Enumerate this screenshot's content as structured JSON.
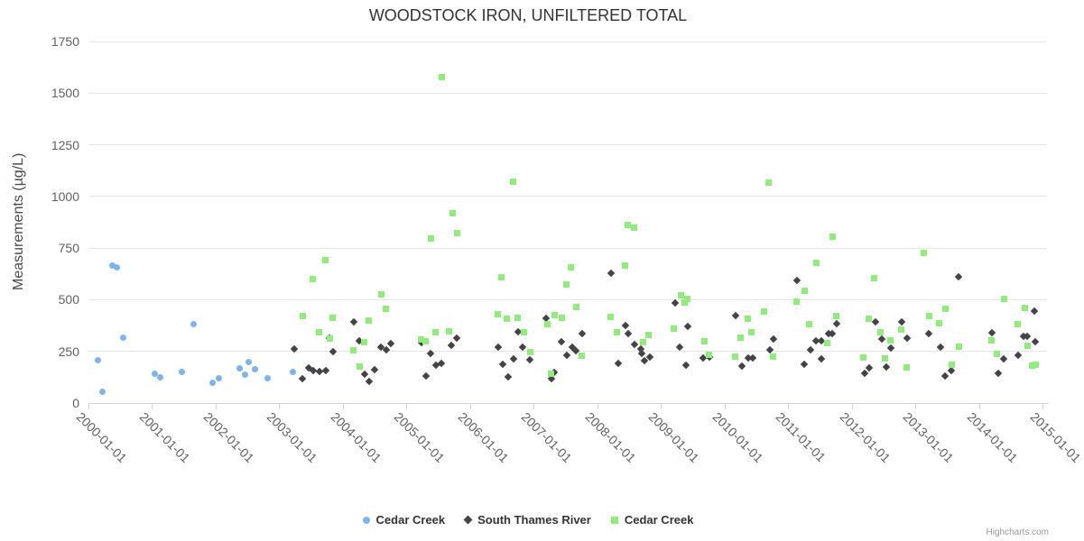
{
  "credits": {
    "label": "Highcharts.com"
  },
  "chart_data": {
    "type": "scatter",
    "title": "WOODSTOCK IRON, UNFILTERED TOTAL",
    "xlabel": "",
    "ylabel": "Measurements (µg/L)",
    "ylim": [
      0,
      1750
    ],
    "yticks": [
      0,
      250,
      500,
      750,
      1000,
      1250,
      1500,
      1750
    ],
    "xlim_years": [
      2000,
      2015
    ],
    "xticks": [
      "2000-01-01",
      "2001-01-01",
      "2002-01-01",
      "2003-01-01",
      "2004-01-01",
      "2005-01-01",
      "2006-01-01",
      "2007-01-01",
      "2008-01-01",
      "2009-01-01",
      "2010-01-01",
      "2011-01-01",
      "2012-01-01",
      "2013-01-01",
      "2014-01-01",
      "2015-01-01"
    ],
    "grid": true,
    "legend_position": "bottom-center",
    "series": [
      {
        "name": "Cedar Creek",
        "marker": "circle",
        "color": "#7cb5ec",
        "points": [
          [
            2000.15,
            207
          ],
          [
            2000.22,
            55
          ],
          [
            2000.37,
            665
          ],
          [
            2000.45,
            655
          ],
          [
            2000.55,
            315
          ],
          [
            2001.05,
            140
          ],
          [
            2001.13,
            125
          ],
          [
            2001.47,
            150
          ],
          [
            2001.65,
            380
          ],
          [
            2001.95,
            100
          ],
          [
            2002.05,
            118
          ],
          [
            2002.37,
            167
          ],
          [
            2002.46,
            137
          ],
          [
            2002.52,
            198
          ],
          [
            2002.62,
            162
          ],
          [
            2002.81,
            119
          ],
          [
            2003.22,
            150
          ]
        ]
      },
      {
        "name": "South Thames River",
        "marker": "diamond",
        "color": "#434348",
        "points": [
          [
            2003.23,
            261
          ],
          [
            2003.37,
            118
          ],
          [
            2003.46,
            172
          ],
          [
            2003.54,
            156
          ],
          [
            2003.64,
            153
          ],
          [
            2003.73,
            156
          ],
          [
            2003.79,
            315
          ],
          [
            2003.84,
            249
          ],
          [
            2004.17,
            394
          ],
          [
            2004.26,
            303
          ],
          [
            2004.34,
            141
          ],
          [
            2004.42,
            105
          ],
          [
            2004.5,
            161
          ],
          [
            2004.6,
            271
          ],
          [
            2004.68,
            259
          ],
          [
            2004.75,
            286
          ],
          [
            2005.23,
            294
          ],
          [
            2005.31,
            131
          ],
          [
            2005.38,
            239
          ],
          [
            2005.46,
            185
          ],
          [
            2005.55,
            194
          ],
          [
            2005.71,
            280
          ],
          [
            2005.79,
            314
          ],
          [
            2006.44,
            271
          ],
          [
            2006.51,
            189
          ],
          [
            2006.6,
            128
          ],
          [
            2006.68,
            213
          ],
          [
            2006.75,
            343
          ],
          [
            2006.82,
            271
          ],
          [
            2006.94,
            210
          ],
          [
            2007.2,
            411
          ],
          [
            2007.28,
            117
          ],
          [
            2007.32,
            150
          ],
          [
            2007.44,
            298
          ],
          [
            2007.52,
            230
          ],
          [
            2007.6,
            271
          ],
          [
            2007.67,
            254
          ],
          [
            2007.76,
            336
          ],
          [
            2008.22,
            629
          ],
          [
            2008.33,
            194
          ],
          [
            2008.45,
            376
          ],
          [
            2008.49,
            334
          ],
          [
            2008.59,
            283
          ],
          [
            2008.68,
            264
          ],
          [
            2008.7,
            239
          ],
          [
            2008.74,
            204
          ],
          [
            2008.82,
            224
          ],
          [
            2009.22,
            483
          ],
          [
            2009.3,
            271
          ],
          [
            2009.39,
            185
          ],
          [
            2009.42,
            373
          ],
          [
            2009.67,
            217
          ],
          [
            2009.76,
            224
          ],
          [
            2010.17,
            424
          ],
          [
            2010.27,
            179
          ],
          [
            2010.38,
            220
          ],
          [
            2010.44,
            217
          ],
          [
            2010.71,
            259
          ],
          [
            2010.77,
            308
          ],
          [
            2011.14,
            595
          ],
          [
            2011.26,
            189
          ],
          [
            2011.35,
            257
          ],
          [
            2011.44,
            303
          ],
          [
            2011.52,
            303
          ],
          [
            2011.53,
            213
          ],
          [
            2011.63,
            337
          ],
          [
            2011.7,
            337
          ],
          [
            2011.76,
            385
          ],
          [
            2012.2,
            144
          ],
          [
            2012.28,
            169
          ],
          [
            2012.38,
            391
          ],
          [
            2012.48,
            308
          ],
          [
            2012.54,
            176
          ],
          [
            2012.62,
            268
          ],
          [
            2012.79,
            394
          ],
          [
            2012.87,
            315
          ],
          [
            2013.21,
            334
          ],
          [
            2013.4,
            271
          ],
          [
            2013.47,
            131
          ],
          [
            2013.57,
            158
          ],
          [
            2013.68,
            613
          ],
          [
            2014.21,
            341
          ],
          [
            2014.31,
            146
          ],
          [
            2014.39,
            213
          ],
          [
            2014.62,
            230
          ],
          [
            2014.7,
            325
          ],
          [
            2014.76,
            325
          ],
          [
            2014.87,
            445
          ],
          [
            2014.89,
            296
          ]
        ]
      },
      {
        "name": "Cedar Creek",
        "marker": "square",
        "color": "#90ed7d",
        "points": [
          [
            2003.37,
            421
          ],
          [
            2003.53,
            599
          ],
          [
            2003.63,
            344
          ],
          [
            2003.72,
            690
          ],
          [
            2003.8,
            311
          ],
          [
            2003.84,
            414
          ],
          [
            2004.17,
            254
          ],
          [
            2004.26,
            176
          ],
          [
            2004.34,
            296
          ],
          [
            2004.41,
            400
          ],
          [
            2004.61,
            526
          ],
          [
            2004.67,
            454
          ],
          [
            2005.23,
            306
          ],
          [
            2005.3,
            297
          ],
          [
            2005.39,
            798
          ],
          [
            2005.46,
            344
          ],
          [
            2005.56,
            1578
          ],
          [
            2005.67,
            349
          ],
          [
            2005.73,
            920
          ],
          [
            2005.8,
            822
          ],
          [
            2006.43,
            432
          ],
          [
            2006.49,
            607
          ],
          [
            2006.58,
            407
          ],
          [
            2006.67,
            1070
          ],
          [
            2006.75,
            413
          ],
          [
            2006.85,
            344
          ],
          [
            2006.94,
            245
          ],
          [
            2007.21,
            384
          ],
          [
            2007.27,
            141
          ],
          [
            2007.33,
            426
          ],
          [
            2007.44,
            413
          ],
          [
            2007.51,
            574
          ],
          [
            2007.59,
            655
          ],
          [
            2007.67,
            465
          ],
          [
            2007.76,
            230
          ],
          [
            2008.21,
            417
          ],
          [
            2008.31,
            343
          ],
          [
            2008.44,
            665
          ],
          [
            2008.48,
            860
          ],
          [
            2008.58,
            849
          ],
          [
            2008.72,
            296
          ],
          [
            2008.81,
            328
          ],
          [
            2009.2,
            360
          ],
          [
            2009.31,
            522
          ],
          [
            2009.38,
            486
          ],
          [
            2009.42,
            503
          ],
          [
            2009.69,
            298
          ],
          [
            2009.76,
            233
          ],
          [
            2010.17,
            226
          ],
          [
            2010.26,
            318
          ],
          [
            2010.37,
            407
          ],
          [
            2010.42,
            341
          ],
          [
            2010.62,
            443
          ],
          [
            2010.7,
            1069
          ],
          [
            2010.76,
            223
          ],
          [
            2011.14,
            493
          ],
          [
            2011.26,
            544
          ],
          [
            2011.33,
            381
          ],
          [
            2011.45,
            678
          ],
          [
            2011.62,
            289
          ],
          [
            2011.7,
            804
          ],
          [
            2011.76,
            421
          ],
          [
            2012.19,
            220
          ],
          [
            2012.27,
            410
          ],
          [
            2012.36,
            604
          ],
          [
            2012.45,
            344
          ],
          [
            2012.53,
            216
          ],
          [
            2012.61,
            305
          ],
          [
            2012.78,
            356
          ],
          [
            2012.86,
            172
          ],
          [
            2013.13,
            728
          ],
          [
            2013.22,
            420
          ],
          [
            2013.37,
            385
          ],
          [
            2013.47,
            454
          ],
          [
            2013.57,
            184
          ],
          [
            2013.69,
            271
          ],
          [
            2014.2,
            305
          ],
          [
            2014.28,
            238
          ],
          [
            2014.39,
            504
          ],
          [
            2014.61,
            384
          ],
          [
            2014.72,
            461
          ],
          [
            2014.77,
            277
          ],
          [
            2014.84,
            179
          ],
          [
            2014.9,
            184
          ]
        ]
      }
    ]
  }
}
